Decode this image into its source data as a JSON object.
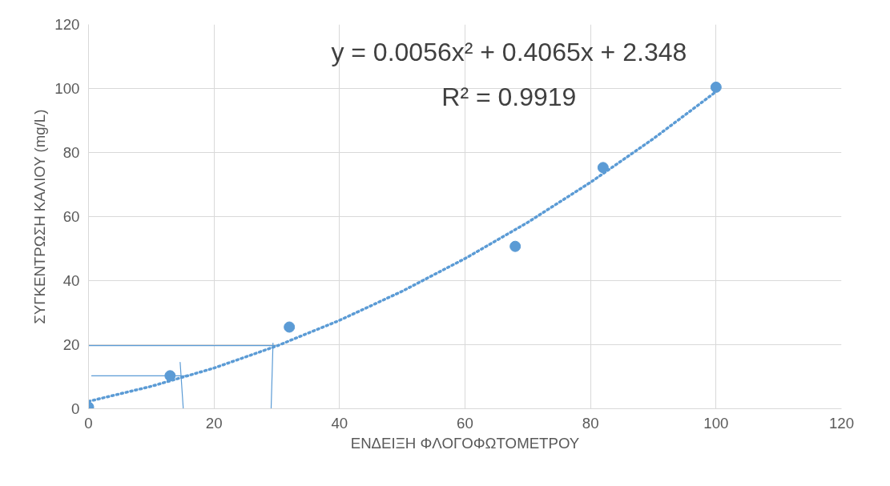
{
  "chart_data": {
    "type": "scatter",
    "xlabel": "ΕΝΔΕΙΞΗ ΦΛΟΓΟΦΩΤΟΜΕΤΡΟΥ",
    "ylabel": "ΣΥΓΚΕΝΤΡΩΣΗ ΚΑΛΙΟΥ (mg/L)",
    "annotations": [
      "y = 0.0056x² + 0.4065x + 2.348",
      "R² = 0.9919"
    ],
    "xlim": [
      0,
      120
    ],
    "ylim": [
      0,
      120
    ],
    "xticks": [
      0,
      20,
      40,
      60,
      80,
      100,
      120
    ],
    "yticks": [
      0,
      20,
      40,
      60,
      80,
      100,
      120
    ],
    "grid": true,
    "series": [
      {
        "marker": "circle",
        "color": "#5b9bd5",
        "x": [
          0,
          13,
          32,
          68,
          82,
          100
        ],
        "values": [
          0.5,
          10.3,
          25.5,
          50.7,
          75.3,
          100.4
        ]
      },
      {
        "type": "line",
        "line_style": "dotted",
        "color": "#5b9bd5",
        "x": [
          0,
          10,
          20,
          30,
          40,
          50,
          60,
          70,
          80,
          90,
          100
        ],
        "values": [
          2.3,
          7.0,
          12.7,
          19.6,
          27.6,
          36.7,
          46.9,
          58.2,
          70.7,
          84.3,
          99.0
        ]
      },
      {
        "type": "line",
        "line_style": "solid",
        "color": "#5b9bd5",
        "x": [
          0,
          29.8
        ],
        "values": [
          19.7,
          19.7
        ]
      },
      {
        "type": "line",
        "line_style": "solid",
        "color": "#5b9bd5",
        "x": [
          29.4,
          29.1
        ],
        "values": [
          20.5,
          0
        ]
      },
      {
        "type": "line",
        "line_style": "solid",
        "color": "#5b9bd5",
        "x": [
          0.5,
          16
        ],
        "values": [
          10.3,
          10.3
        ]
      },
      {
        "type": "line",
        "line_style": "solid",
        "color": "#5b9bd5",
        "x": [
          14.6,
          15.1
        ],
        "values": [
          14.5,
          0
        ]
      }
    ]
  }
}
